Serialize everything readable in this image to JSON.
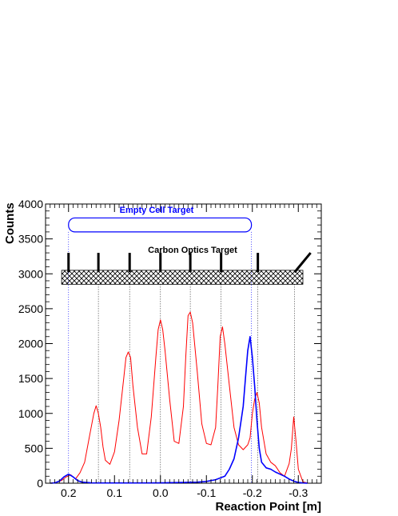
{
  "chart_data": {
    "type": "line",
    "title": "",
    "xlabel": "Reaction Point [m]",
    "ylabel": "Counts",
    "xlim": [
      0.25,
      -0.35
    ],
    "ylim": [
      0,
      4000
    ],
    "x_reversed": true,
    "grid": false,
    "x_ticks": [
      {
        "value": 0.2,
        "label": "0.2"
      },
      {
        "value": 0.1,
        "label": "0.1"
      },
      {
        "value": 0.0,
        "label": "0.0"
      },
      {
        "value": -0.1,
        "label": "-0.1"
      },
      {
        "value": -0.2,
        "label": "-0.2"
      },
      {
        "value": -0.3,
        "label": "-0.3"
      }
    ],
    "y_ticks": [
      {
        "value": 0,
        "label": "0"
      },
      {
        "value": 500,
        "label": "500"
      },
      {
        "value": 1000,
        "label": "1000"
      },
      {
        "value": 1500,
        "label": "1500"
      },
      {
        "value": 2000,
        "label": "2000"
      },
      {
        "value": 2500,
        "label": "2500"
      },
      {
        "value": 3000,
        "label": "3000"
      },
      {
        "value": 3500,
        "label": "3500"
      },
      {
        "value": 4000,
        "label": "4000"
      }
    ],
    "series": [
      {
        "color": "#ff0000",
        "x": [
          0.235,
          0.225,
          0.215,
          0.205,
          0.195,
          0.185,
          0.175,
          0.165,
          0.155,
          0.145,
          0.14,
          0.135,
          0.13,
          0.125,
          0.12,
          0.11,
          0.1,
          0.09,
          0.08,
          0.075,
          0.07,
          0.065,
          0.06,
          0.05,
          0.04,
          0.03,
          0.02,
          0.01,
          0.005,
          0.0,
          -0.005,
          -0.01,
          -0.02,
          -0.03,
          -0.04,
          -0.05,
          -0.055,
          -0.06,
          -0.065,
          -0.07,
          -0.08,
          -0.09,
          -0.1,
          -0.11,
          -0.12,
          -0.125,
          -0.13,
          -0.135,
          -0.14,
          -0.15,
          -0.16,
          -0.17,
          -0.18,
          -0.19,
          -0.195,
          -0.2,
          -0.205,
          -0.21,
          -0.215,
          -0.22,
          -0.23,
          -0.24,
          -0.25,
          -0.26,
          -0.27,
          -0.28,
          -0.285,
          -0.29,
          -0.295,
          -0.3,
          -0.31,
          -0.32
        ],
        "y": [
          5,
          15,
          40,
          90,
          120,
          60,
          150,
          300,
          650,
          1000,
          1110,
          1000,
          800,
          520,
          330,
          270,
          450,
          900,
          1500,
          1800,
          1880,
          1800,
          1400,
          800,
          420,
          420,
          950,
          1800,
          2200,
          2340,
          2200,
          1900,
          1200,
          600,
          570,
          1100,
          1800,
          2400,
          2450,
          2300,
          1600,
          850,
          570,
          550,
          800,
          1400,
          2100,
          2240,
          2000,
          1400,
          800,
          550,
          480,
          550,
          650,
          1000,
          1200,
          1300,
          1150,
          800,
          420,
          300,
          250,
          150,
          100,
          280,
          500,
          950,
          600,
          200,
          20,
          2
        ]
      },
      {
        "color": "#0000ff",
        "x": [
          0.24,
          0.23,
          0.22,
          0.21,
          0.2,
          0.19,
          0.18,
          0.17,
          0.15,
          0.1,
          0.05,
          0.0,
          -0.05,
          -0.08,
          -0.1,
          -0.12,
          -0.14,
          -0.15,
          -0.16,
          -0.17,
          -0.18,
          -0.185,
          -0.19,
          -0.195,
          -0.2,
          -0.205,
          -0.21,
          -0.215,
          -0.22,
          -0.23,
          -0.24,
          -0.25,
          -0.26,
          -0.27,
          -0.28,
          -0.29,
          -0.3,
          -0.31,
          -0.32
        ],
        "y": [
          0,
          5,
          30,
          90,
          130,
          90,
          35,
          15,
          5,
          3,
          3,
          5,
          10,
          15,
          25,
          50,
          100,
          200,
          350,
          650,
          1100,
          1500,
          1900,
          2100,
          1800,
          1400,
          900,
          500,
          300,
          220,
          200,
          160,
          130,
          100,
          60,
          30,
          10,
          3,
          0
        ]
      }
    ],
    "annotations": {
      "empty_cell_label": "Empty Cell Target",
      "carbon_label": "Carbon Optics Target",
      "empty_cell_color": "#0000ff",
      "empty_cell_range": [
        0.2,
        -0.198
      ],
      "empty_cell_y": [
        3600,
        3800
      ],
      "carbon_band_y": [
        2850,
        3050
      ],
      "carbon_foils": [
        0.2,
        0.135,
        0.067,
        0.0,
        -0.065,
        -0.132,
        -0.212,
        -0.292
      ]
    }
  }
}
